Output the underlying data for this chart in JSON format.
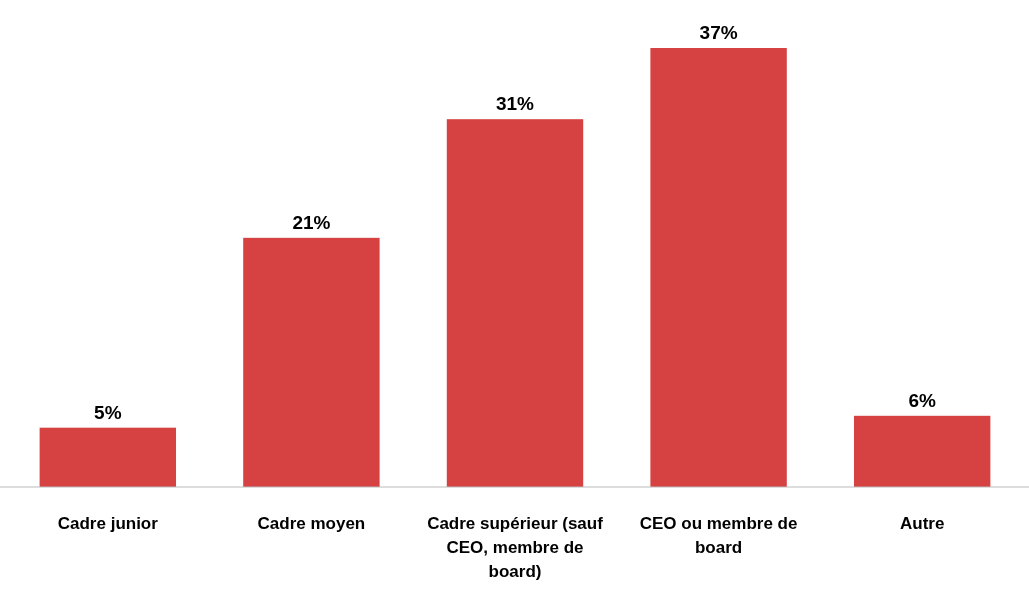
{
  "chart_data": {
    "type": "bar",
    "categories": [
      "Cadre junior",
      "Cadre moyen",
      "Cadre supérieur (sauf CEO, membre de board)",
      "CEO ou membre de board",
      "Autre"
    ],
    "values": [
      5,
      21,
      31,
      37,
      6
    ],
    "color": "#d64141",
    "data_labels": true,
    "value_labels": [
      "5%",
      "21%",
      "31%",
      "37%",
      "6%"
    ]
  }
}
